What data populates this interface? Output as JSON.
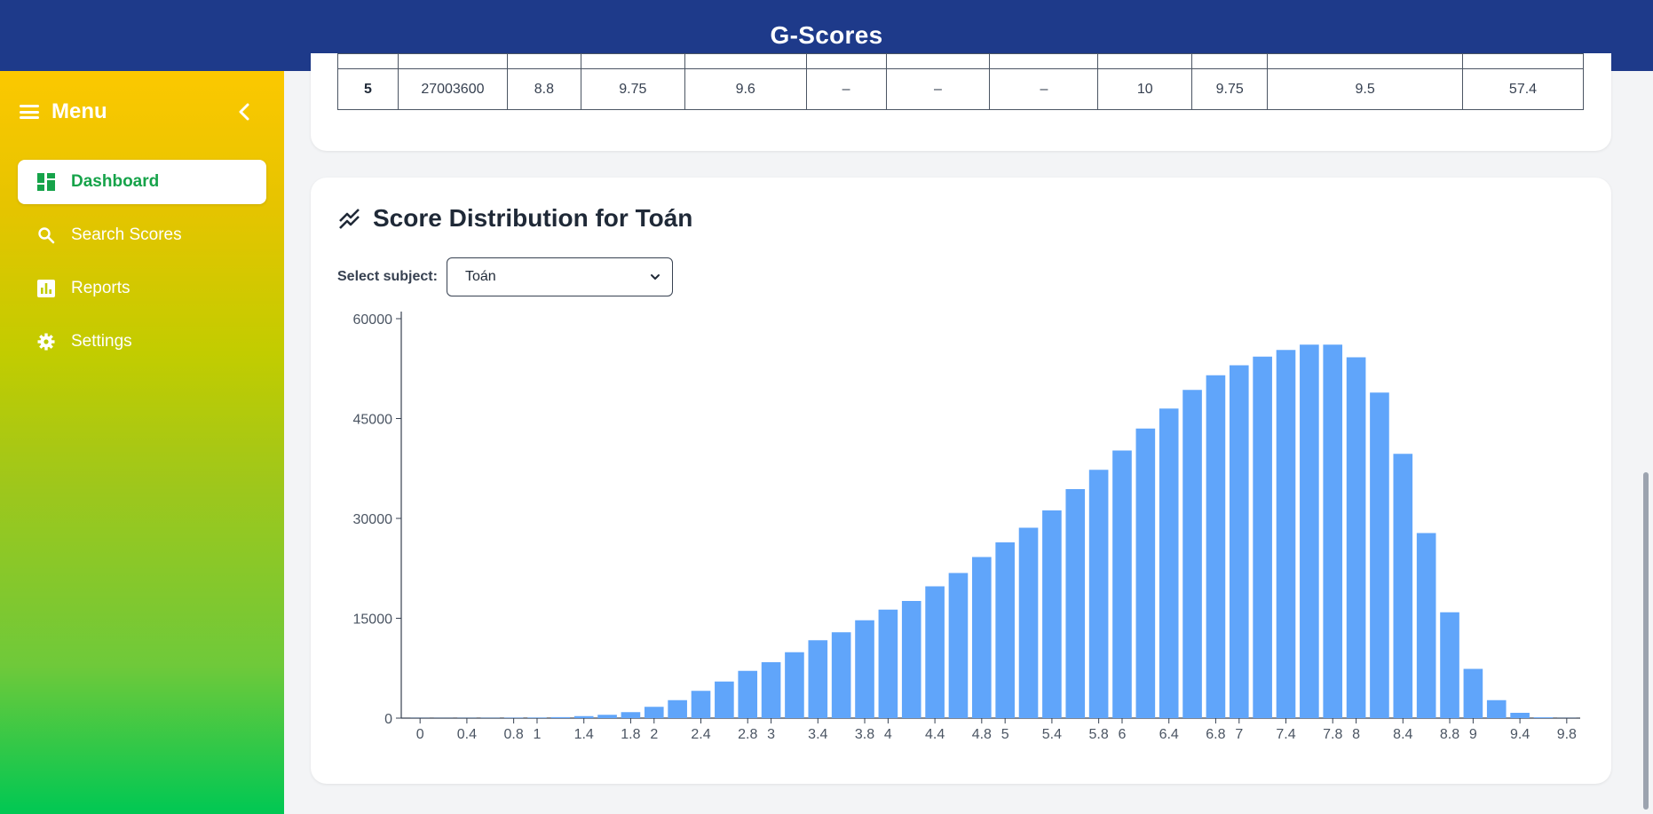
{
  "app": {
    "title": "G-Scores"
  },
  "sidebar": {
    "menu_label": "Menu",
    "items": [
      {
        "label": "Dashboard",
        "icon": "dashboard-icon",
        "active": true
      },
      {
        "label": "Search Scores",
        "icon": "search-icon",
        "active": false
      },
      {
        "label": "Reports",
        "icon": "reports-icon",
        "active": false
      },
      {
        "label": "Settings",
        "icon": "gear-icon",
        "active": false
      }
    ]
  },
  "top_table": {
    "row": {
      "rank": "5",
      "id": "27003600",
      "c1": "8.8",
      "c2": "9.75",
      "c3": "9.6",
      "c4": "–",
      "c5": "–",
      "c6": "–",
      "c7": "10",
      "c8": "9.75",
      "c9": "9.5",
      "total": "57.4"
    }
  },
  "distribution": {
    "title": "Score Distribution for Toán",
    "select_label": "Select subject:",
    "selected_subject": "Toán"
  },
  "colors": {
    "header": "#1e3a8a",
    "bar": "#60a5fa",
    "active_nav_text": "#16a34a"
  },
  "chart_data": {
    "type": "bar",
    "x": [
      "0",
      "0.2",
      "0.4",
      "0.6",
      "0.8",
      "1",
      "1.2",
      "1.4",
      "1.6",
      "1.8",
      "2",
      "2.2",
      "2.4",
      "2.6",
      "2.8",
      "3",
      "3.2",
      "3.4",
      "3.6",
      "3.8",
      "4",
      "4.2",
      "4.4",
      "4.6",
      "4.8",
      "5",
      "5.2",
      "5.4",
      "5.6",
      "5.8",
      "6",
      "6.2",
      "6.4",
      "6.6",
      "6.8",
      "7",
      "7.2",
      "7.4",
      "7.6",
      "7.8",
      "8",
      "8.2",
      "8.4",
      "8.6",
      "8.8",
      "9",
      "9.2",
      "9.4",
      "9.6",
      "9.8"
    ],
    "values": [
      20,
      20,
      30,
      40,
      60,
      80,
      150,
      300,
      500,
      900,
      1700,
      2700,
      4100,
      5500,
      7100,
      8400,
      9900,
      11700,
      12900,
      14700,
      16300,
      17600,
      19800,
      21800,
      24200,
      26400,
      28600,
      31200,
      34400,
      37300,
      40200,
      43500,
      46500,
      49300,
      51500,
      53000,
      54300,
      55300,
      56100,
      56100,
      54200,
      48900,
      39700,
      27800,
      15900,
      7400,
      2700,
      800,
      120,
      20
    ],
    "tick_labels": [
      "0",
      "0.4",
      "0.8",
      "1",
      "1.4",
      "1.8",
      "2",
      "2.4",
      "2.8",
      "3",
      "3.4",
      "3.8",
      "4",
      "4.4",
      "4.8",
      "5",
      "5.4",
      "5.8",
      "6",
      "6.4",
      "6.8",
      "7",
      "7.4",
      "7.8",
      "8",
      "8.4",
      "8.8",
      "9",
      "9.4",
      "9.8"
    ],
    "yticks": [
      0,
      15000,
      30000,
      45000,
      60000
    ],
    "ylim": [
      0,
      60000
    ],
    "grid": false
  }
}
